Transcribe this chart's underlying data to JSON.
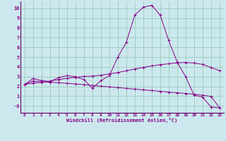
{
  "xlabel": "Windchill (Refroidissement éolien,°C)",
  "bg_color": "#cce8ee",
  "line_color": "#880088",
  "grid_color": "#99ccbb",
  "axis_color": "#660066",
  "xlim": [
    -0.5,
    23.5
  ],
  "ylim": [
    -0.7,
    10.7
  ],
  "xticks": [
    0,
    1,
    2,
    3,
    4,
    5,
    6,
    7,
    8,
    9,
    10,
    11,
    12,
    13,
    14,
    15,
    16,
    17,
    18,
    19,
    20,
    21,
    22,
    23
  ],
  "yticks": [
    0,
    1,
    2,
    3,
    4,
    5,
    6,
    7,
    8,
    9,
    10
  ],
  "ytick_labels": [
    "-0",
    "1",
    "2",
    "3",
    "4",
    "5",
    "6",
    "7",
    "8",
    "9",
    "10"
  ],
  "series": [
    [
      2.2,
      2.8,
      2.6,
      2.5,
      2.9,
      3.1,
      3.0,
      2.7,
      1.8,
      2.6,
      3.1,
      5.0,
      6.5,
      9.3,
      10.1,
      10.3,
      9.3,
      6.7,
      4.5,
      3.0,
      1.1,
      0.9,
      -0.1,
      -0.2
    ],
    [
      2.2,
      2.35,
      2.4,
      2.55,
      2.7,
      2.82,
      2.93,
      3.02,
      3.05,
      3.15,
      3.28,
      3.42,
      3.6,
      3.78,
      3.95,
      4.1,
      4.22,
      4.32,
      4.42,
      4.45,
      4.4,
      4.25,
      3.95,
      3.6
    ],
    [
      2.2,
      2.55,
      2.48,
      2.43,
      2.38,
      2.32,
      2.25,
      2.18,
      2.1,
      2.02,
      1.95,
      1.88,
      1.8,
      1.72,
      1.65,
      1.58,
      1.5,
      1.42,
      1.35,
      1.28,
      1.2,
      1.1,
      0.98,
      -0.18
    ]
  ]
}
